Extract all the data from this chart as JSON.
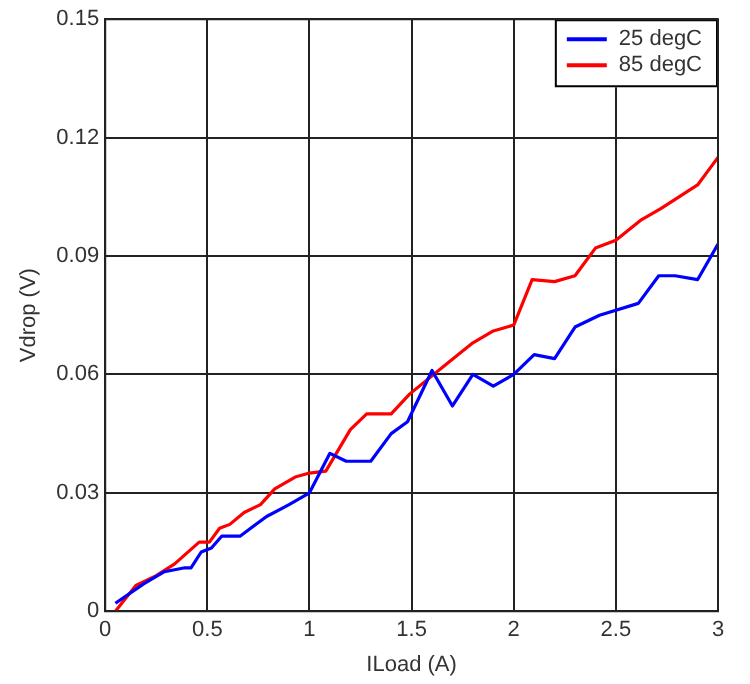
{
  "chart_data": {
    "type": "line",
    "xlabel": "ILoad (A)",
    "ylabel": "Vdrop (V)",
    "xlim": [
      0,
      3
    ],
    "xticks": [
      0,
      0.5,
      1,
      1.5,
      2,
      2.5,
      3
    ],
    "ylim": [
      0,
      0.15
    ],
    "yticks": [
      0,
      0.03,
      0.06,
      0.09,
      0.12,
      0.15
    ],
    "grid": true,
    "legend": "top right",
    "marker": "none",
    "line_style": "solid",
    "series": [
      {
        "name": "25 degC",
        "color": "#0000ff",
        "x": [
          0.05,
          0.19,
          0.29,
          0.39,
          0.42,
          0.47,
          0.52,
          0.57,
          0.66,
          0.79,
          0.9,
          1.0,
          1.1,
          1.18,
          1.3,
          1.4,
          1.48,
          1.6,
          1.7,
          1.8,
          1.9,
          2.0,
          2.1,
          2.2,
          2.3,
          2.42,
          2.61,
          2.71,
          2.79,
          2.9,
          3.0
        ],
        "values": [
          0.002,
          0.007,
          0.01,
          0.011,
          0.011,
          0.015,
          0.016,
          0.019,
          0.019,
          0.024,
          0.027,
          0.03,
          0.04,
          0.038,
          0.038,
          0.045,
          0.048,
          0.061,
          0.052,
          0.06,
          0.057,
          0.06,
          0.065,
          0.064,
          0.072,
          0.075,
          0.078,
          0.085,
          0.085,
          0.084,
          0.093
        ]
      },
      {
        "name": "85 degC",
        "color": "#ff0000",
        "x": [
          0.05,
          0.15,
          0.25,
          0.34,
          0.46,
          0.51,
          0.56,
          0.61,
          0.68,
          0.76,
          0.83,
          0.93,
          1.0,
          1.08,
          1.2,
          1.28,
          1.4,
          1.49,
          1.68,
          1.8,
          1.9,
          2.0,
          2.09,
          2.2,
          2.3,
          2.4,
          2.5,
          2.62,
          2.72,
          2.9,
          3.0
        ],
        "values": [
          0.0,
          0.0065,
          0.009,
          0.012,
          0.0175,
          0.0175,
          0.021,
          0.022,
          0.025,
          0.027,
          0.031,
          0.034,
          0.035,
          0.0355,
          0.046,
          0.05,
          0.05,
          0.055,
          0.063,
          0.068,
          0.071,
          0.0725,
          0.084,
          0.0835,
          0.085,
          0.092,
          0.094,
          0.099,
          0.102,
          0.108,
          0.115
        ]
      }
    ]
  }
}
